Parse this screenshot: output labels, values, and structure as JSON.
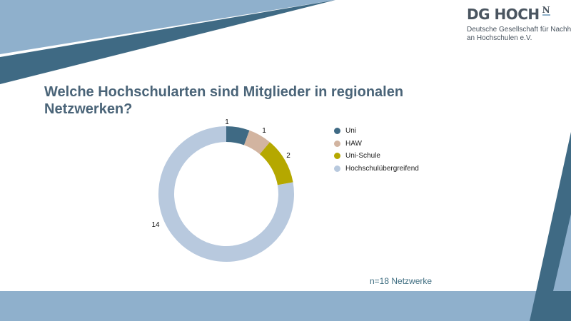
{
  "logo": {
    "main": "DG HOCH",
    "superscript": "N",
    "sub_line1": "Deutsche Gesellschaft für Nachhaltigkeit",
    "sub_line2": "an Hochschulen e.V."
  },
  "title": "Welche Hochschularten sind Mitglieder in regionalen Netzwerken?",
  "note": "n=18 Netzwerke",
  "chart_data": {
    "type": "pie",
    "subtype": "donut",
    "categories": [
      "Uni",
      "HAW",
      "Uni-Schule",
      "Hochschulübergreifend"
    ],
    "values": [
      1,
      1,
      2,
      14
    ],
    "labels": [
      "1",
      "1",
      "2",
      "14"
    ],
    "colors": [
      "#3f6a84",
      "#d2b4a0",
      "#b5a800",
      "#b8c9de"
    ],
    "legend": "right"
  },
  "colors": {
    "dark": "#3f6a84",
    "light": "#8fb0cc"
  }
}
